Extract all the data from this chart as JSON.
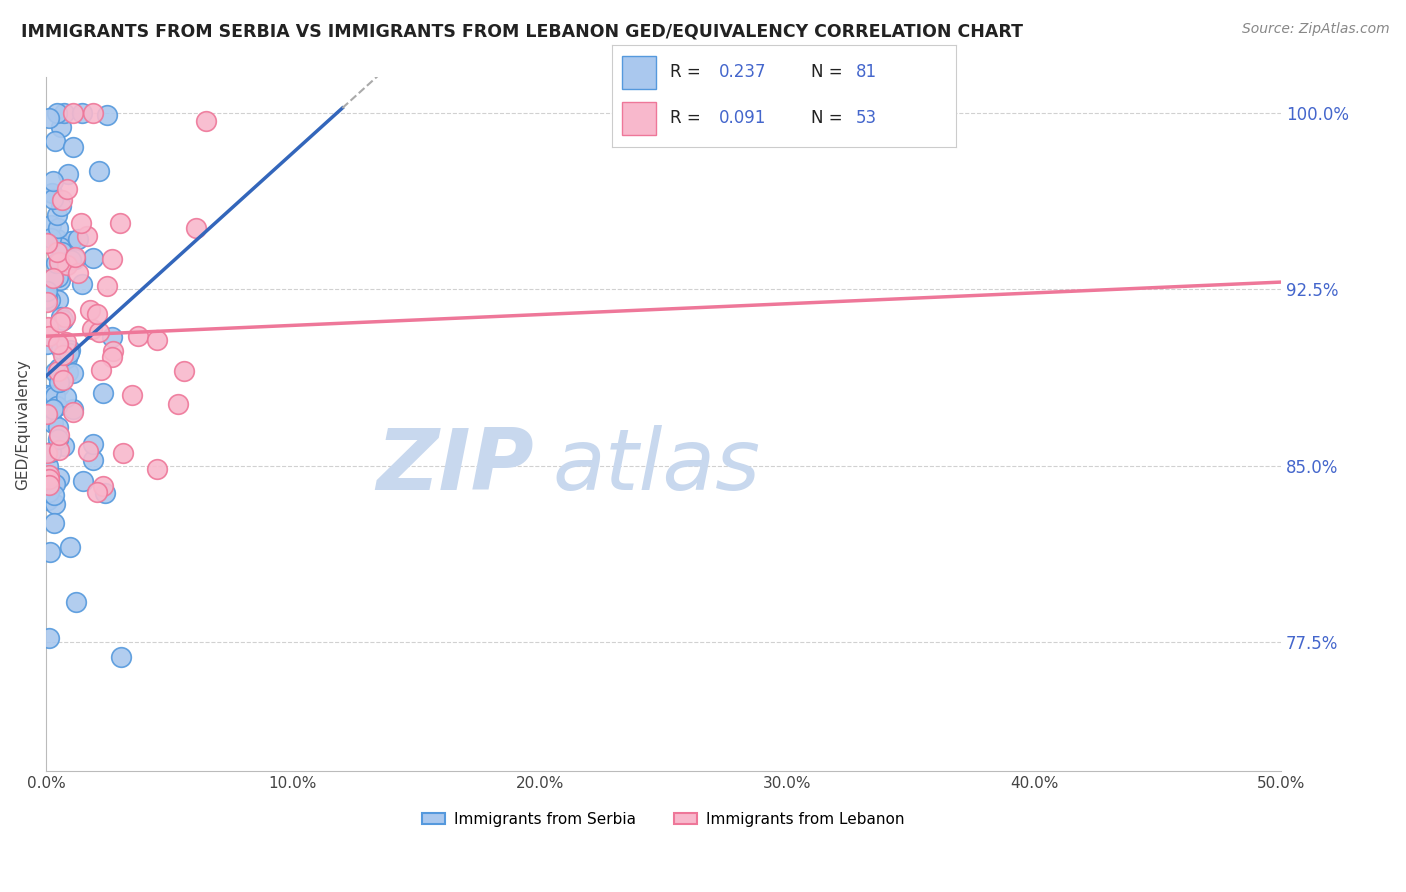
{
  "title": "IMMIGRANTS FROM SERBIA VS IMMIGRANTS FROM LEBANON GED/EQUIVALENCY CORRELATION CHART",
  "source": "Source: ZipAtlas.com",
  "ylabel": "GED/Equivalency",
  "xlim": [
    0.0,
    50.0
  ],
  "ylim": [
    72.0,
    101.5
  ],
  "x_tick_values": [
    0,
    10,
    20,
    30,
    40,
    50
  ],
  "x_tick_labels": [
    "0.0%",
    "10.0%",
    "20.0%",
    "30.0%",
    "40.0%",
    "50.0%"
  ],
  "y_tick_values": [
    77.5,
    85.0,
    92.5,
    100.0
  ],
  "y_tick_labels": [
    "77.5%",
    "85.0%",
    "92.5%",
    "100.0%"
  ],
  "grid_color": "#cccccc",
  "background_color": "#ffffff",
  "serbia_fill_color": "#aac8ee",
  "lebanon_fill_color": "#f8b8cc",
  "serbia_edge_color": "#5599dd",
  "lebanon_edge_color": "#ee7799",
  "serbia_line_color": "#3366bb",
  "lebanon_line_color": "#ee7799",
  "serbia_R": 0.237,
  "serbia_N": 81,
  "lebanon_R": 0.091,
  "lebanon_N": 53,
  "legend_label_serbia": "Immigrants from Serbia",
  "legend_label_lebanon": "Immigrants from Lebanon",
  "watermark_zip_color": "#c8d8ee",
  "watermark_atlas_color": "#c8d8ee",
  "right_label_color": "#4466cc",
  "serbia_trend_x0": 0,
  "serbia_trend_y0": 88.8,
  "serbia_trend_x1": 12,
  "serbia_trend_y1": 100.2,
  "lebanon_trend_x0": 0,
  "lebanon_trend_y0": 90.5,
  "lebanon_trend_x1": 50,
  "lebanon_trend_y1": 92.8
}
